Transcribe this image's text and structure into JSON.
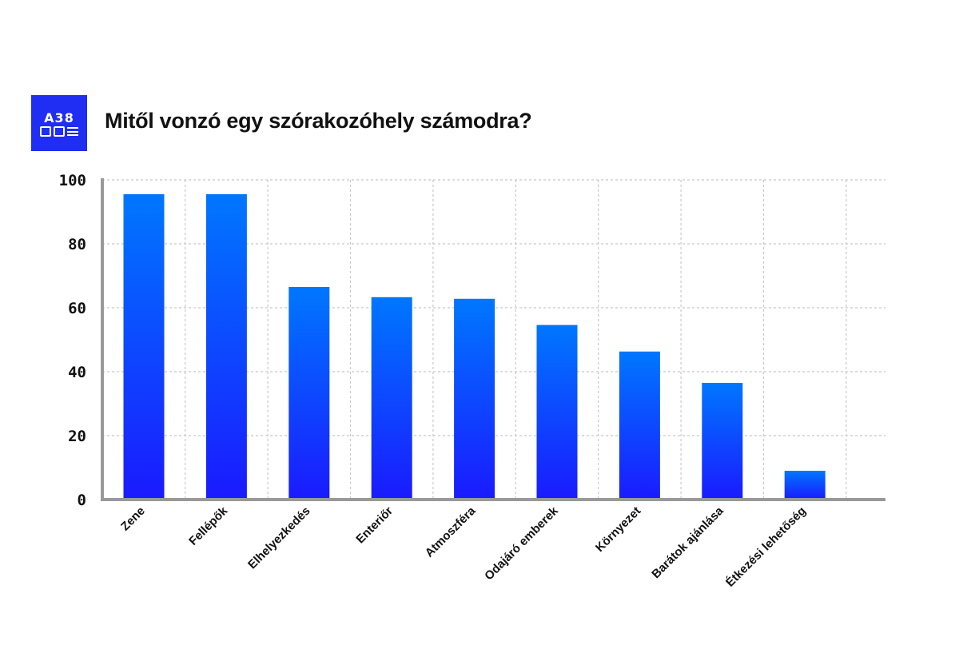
{
  "logo": {
    "text": "A38",
    "icons": [
      "a-box-icon",
      "circle-bar-icon",
      "lines-icon"
    ]
  },
  "chart_data": {
    "type": "bar",
    "title": "Mitől vonzó egy szórakozóhely számodra?",
    "xlabel": "",
    "ylabel": "",
    "categories": [
      "Zene",
      "Fellépők",
      "Elhelyezkedés",
      "Enteriőr",
      "Atmoszféra",
      "Odajáró emberek",
      "Környezet",
      "Barátok ajánlása",
      "Étkezési lehetőség"
    ],
    "values": [
      95.5,
      95.5,
      66.5,
      63.3,
      62.8,
      54.6,
      46.3,
      36.5,
      9
    ],
    "ylim": [
      0,
      100
    ],
    "yticks": [
      "0",
      "20",
      "40",
      "60",
      "80",
      "100"
    ],
    "grid": true,
    "legend": "none",
    "colors": {
      "bar_top": "#0077ff",
      "bar_bottom": "#1a1aff",
      "axis": "#999999",
      "grid": "#c8c8c8"
    }
  }
}
